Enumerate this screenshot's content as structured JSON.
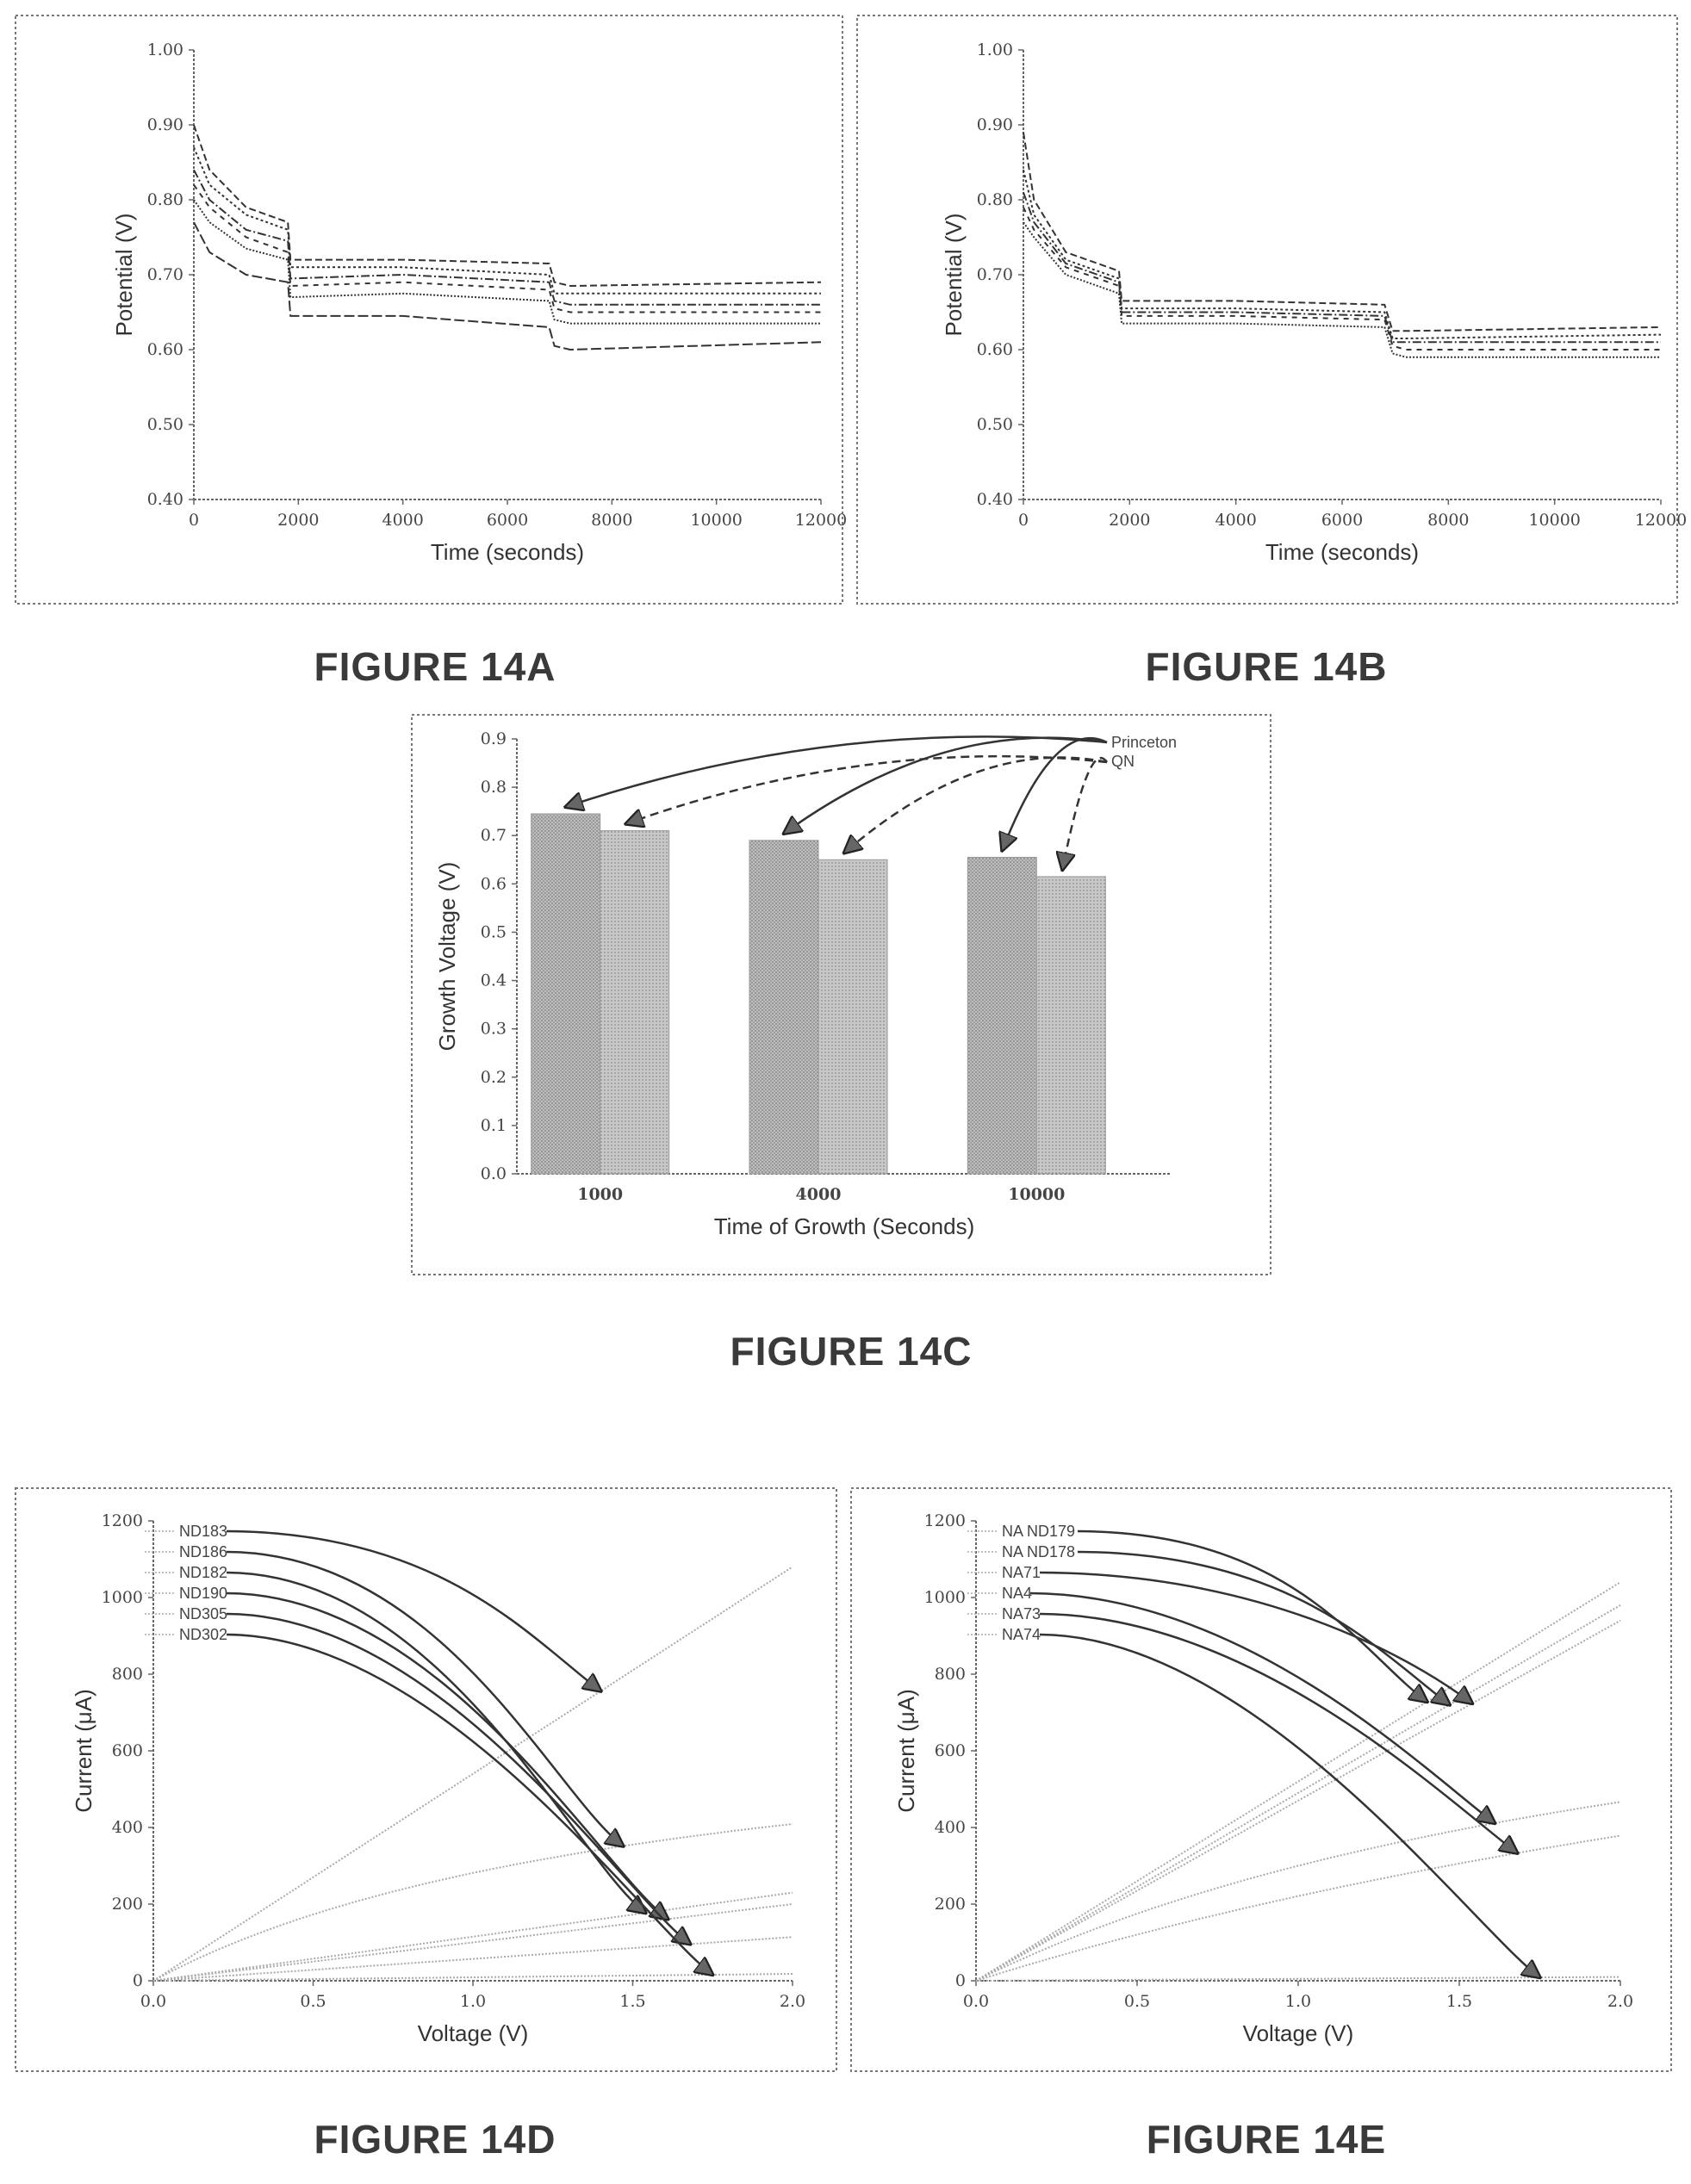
{
  "chart_data": [
    {
      "id": "14A",
      "type": "line",
      "caption": "FIGURE 14A",
      "xlabel": "Time (seconds)",
      "ylabel": "Potential (V)",
      "xlim": [
        0,
        12000
      ],
      "ylim": [
        0.4,
        1.0
      ],
      "xticks": [
        "0",
        "2000",
        "4000",
        "6000",
        "8000",
        "10000",
        "12000"
      ],
      "yticks": [
        "0.40",
        "0.50",
        "0.60",
        "0.70",
        "0.80",
        "0.90",
        "1.00"
      ],
      "series": [
        {
          "p": [
            [
              0,
              0.9
            ],
            [
              300,
              0.84
            ],
            [
              1000,
              0.79
            ],
            [
              1800,
              0.77
            ],
            [
              1850,
              0.72
            ],
            [
              4000,
              0.72
            ],
            [
              6800,
              0.715
            ],
            [
              6900,
              0.69
            ],
            [
              7200,
              0.685
            ],
            [
              12000,
              0.69
            ]
          ]
        },
        {
          "p": [
            [
              0,
              0.87
            ],
            [
              300,
              0.82
            ],
            [
              1000,
              0.78
            ],
            [
              1800,
              0.76
            ],
            [
              1850,
              0.71
            ],
            [
              4000,
              0.71
            ],
            [
              6800,
              0.7
            ],
            [
              6900,
              0.675
            ],
            [
              7200,
              0.675
            ],
            [
              12000,
              0.675
            ]
          ]
        },
        {
          "p": [
            [
              0,
              0.84
            ],
            [
              300,
              0.8
            ],
            [
              1000,
              0.76
            ],
            [
              1800,
              0.745
            ],
            [
              1850,
              0.695
            ],
            [
              4000,
              0.7
            ],
            [
              6800,
              0.69
            ],
            [
              6900,
              0.665
            ],
            [
              7200,
              0.66
            ],
            [
              12000,
              0.66
            ]
          ]
        },
        {
          "p": [
            [
              0,
              0.82
            ],
            [
              300,
              0.79
            ],
            [
              1000,
              0.75
            ],
            [
              1800,
              0.73
            ],
            [
              1850,
              0.685
            ],
            [
              4000,
              0.69
            ],
            [
              6800,
              0.68
            ],
            [
              6900,
              0.655
            ],
            [
              7200,
              0.65
            ],
            [
              12000,
              0.65
            ]
          ]
        },
        {
          "p": [
            [
              0,
              0.8
            ],
            [
              300,
              0.77
            ],
            [
              1000,
              0.735
            ],
            [
              1800,
              0.72
            ],
            [
              1850,
              0.67
            ],
            [
              4000,
              0.675
            ],
            [
              6800,
              0.665
            ],
            [
              6900,
              0.64
            ],
            [
              7200,
              0.635
            ],
            [
              12000,
              0.635
            ]
          ]
        },
        {
          "p": [
            [
              0,
              0.77
            ],
            [
              300,
              0.73
            ],
            [
              1000,
              0.7
            ],
            [
              1800,
              0.69
            ],
            [
              1850,
              0.645
            ],
            [
              4000,
              0.645
            ],
            [
              6800,
              0.63
            ],
            [
              6900,
              0.605
            ],
            [
              7200,
              0.6
            ],
            [
              12000,
              0.61
            ]
          ]
        }
      ]
    },
    {
      "id": "14B",
      "type": "line",
      "caption": "FIGURE 14B",
      "xlabel": "Time (seconds)",
      "ylabel": "Potential (V)",
      "xlim": [
        0,
        12000
      ],
      "ylim": [
        0.4,
        1.0
      ],
      "xticks": [
        "0",
        "2000",
        "4000",
        "6000",
        "8000",
        "10000",
        "12000"
      ],
      "yticks": [
        "0.40",
        "0.50",
        "0.60",
        "0.70",
        "0.80",
        "0.90",
        "1.00"
      ],
      "series": [
        {
          "p": [
            [
              0,
              0.89
            ],
            [
              200,
              0.8
            ],
            [
              800,
              0.73
            ],
            [
              1800,
              0.705
            ],
            [
              1850,
              0.665
            ],
            [
              4000,
              0.665
            ],
            [
              6800,
              0.66
            ],
            [
              6950,
              0.625
            ],
            [
              7200,
              0.625
            ],
            [
              12000,
              0.63
            ]
          ]
        },
        {
          "p": [
            [
              0,
              0.84
            ],
            [
              200,
              0.78
            ],
            [
              800,
              0.72
            ],
            [
              1800,
              0.695
            ],
            [
              1850,
              0.655
            ],
            [
              4000,
              0.655
            ],
            [
              6800,
              0.65
            ],
            [
              6950,
              0.615
            ],
            [
              7200,
              0.615
            ],
            [
              12000,
              0.62
            ]
          ]
        },
        {
          "p": [
            [
              0,
              0.81
            ],
            [
              200,
              0.77
            ],
            [
              800,
              0.715
            ],
            [
              1800,
              0.69
            ],
            [
              1850,
              0.65
            ],
            [
              4000,
              0.65
            ],
            [
              6800,
              0.645
            ],
            [
              6950,
              0.61
            ],
            [
              7200,
              0.61
            ],
            [
              12000,
              0.61
            ]
          ]
        },
        {
          "p": [
            [
              0,
              0.79
            ],
            [
              200,
              0.76
            ],
            [
              800,
              0.71
            ],
            [
              1800,
              0.685
            ],
            [
              1850,
              0.645
            ],
            [
              4000,
              0.645
            ],
            [
              6800,
              0.64
            ],
            [
              6950,
              0.605
            ],
            [
              7200,
              0.6
            ],
            [
              12000,
              0.6
            ]
          ]
        },
        {
          "p": [
            [
              0,
              0.77
            ],
            [
              200,
              0.75
            ],
            [
              800,
              0.7
            ],
            [
              1800,
              0.675
            ],
            [
              1850,
              0.635
            ],
            [
              4000,
              0.635
            ],
            [
              6800,
              0.63
            ],
            [
              6950,
              0.595
            ],
            [
              7200,
              0.59
            ],
            [
              12000,
              0.59
            ]
          ]
        }
      ]
    },
    {
      "id": "14C",
      "type": "bar",
      "caption": "FIGURE 14C",
      "xlabel": "Time of Growth (Seconds)",
      "ylabel": "Growth Voltage (V)",
      "ylim": [
        0.0,
        0.9
      ],
      "yticks": [
        "0.0",
        "0.1",
        "0.2",
        "0.3",
        "0.4",
        "0.5",
        "0.6",
        "0.7",
        "0.8",
        "0.9"
      ],
      "categories": [
        "1000",
        "4000",
        "10000"
      ],
      "series": [
        {
          "name": "Princeton",
          "values": [
            0.745,
            0.69,
            0.655
          ]
        },
        {
          "name": "QN",
          "values": [
            0.71,
            0.65,
            0.615
          ]
        }
      ],
      "legend_position": "top-right"
    },
    {
      "id": "14D",
      "type": "line",
      "caption": "FIGURE 14D",
      "xlabel": "Voltage (V)",
      "ylabel": "Current (μA)",
      "xlim": [
        0.0,
        2.0
      ],
      "ylim": [
        0,
        1200
      ],
      "xticks": [
        "0.0",
        "0.5",
        "1.0",
        "1.5",
        "2.0"
      ],
      "yticks": [
        "0",
        "200",
        "400",
        "600",
        "800",
        "1000",
        "1200"
      ],
      "legend_position": "top-left",
      "series": [
        {
          "name": "ND183",
          "slope": 540,
          "curv": 0
        },
        {
          "name": "ND186",
          "slope": 450,
          "curv": 0.6
        },
        {
          "name": "ND182",
          "slope": 115,
          "curv": 0
        },
        {
          "name": "ND190",
          "slope": 100,
          "curv": 0
        },
        {
          "name": "ND305",
          "slope": 57,
          "curv": 0
        },
        {
          "name": "ND302",
          "slope": 9,
          "curv": 0
        }
      ]
    },
    {
      "id": "14E",
      "type": "line",
      "caption": "FIGURE 14E",
      "xlabel": "Voltage (V)",
      "ylabel": "Current (μA)",
      "xlim": [
        0.0,
        2.0
      ],
      "ylim": [
        0,
        1200
      ],
      "xticks": [
        "0.0",
        "0.5",
        "1.0",
        "1.5",
        "2.0"
      ],
      "yticks": [
        "0",
        "200",
        "400",
        "600",
        "800",
        "1000",
        "1200"
      ],
      "legend_position": "top-left",
      "series": [
        {
          "name": "NA ND179",
          "slope": 520,
          "curv": 0
        },
        {
          "name": "NA ND178",
          "slope": 490,
          "curv": 0
        },
        {
          "name": "NA71",
          "slope": 470,
          "curv": 0
        },
        {
          "name": "NA4",
          "slope": 420,
          "curv": 0.4
        },
        {
          "name": "NA73",
          "slope": 265,
          "curv": 0.2
        },
        {
          "name": "NA74",
          "slope": 5,
          "curv": 0
        }
      ]
    }
  ]
}
